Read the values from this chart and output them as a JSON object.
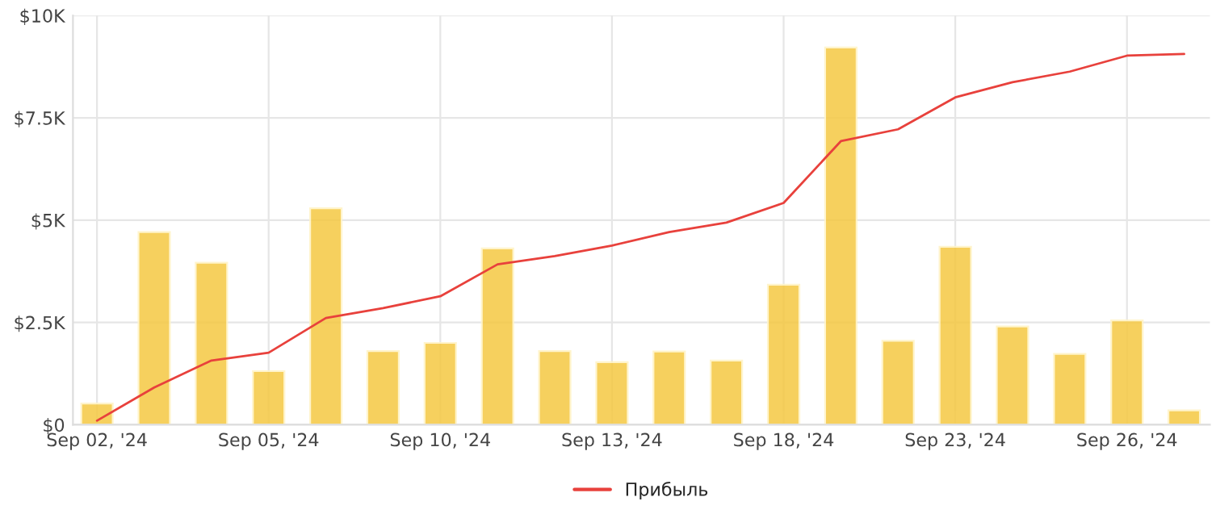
{
  "chart_data": {
    "type": "bar",
    "categories": [
      "Sep 02, '24",
      null,
      null,
      "Sep 05, '24",
      null,
      null,
      "Sep 10, '24",
      null,
      null,
      "Sep 13, '24",
      null,
      null,
      "Sep 18, '24",
      null,
      null,
      "Sep 23, '24",
      null,
      null,
      "Sep 26, '24",
      null
    ],
    "series": [
      {
        "color": "#f5c842",
        "values": [
          520,
          4710,
          3960,
          1310,
          5290,
          1800,
          2000,
          4310,
          1800,
          1530,
          1790,
          1570,
          3420,
          9220,
          2050,
          4350,
          2400,
          1730,
          2550,
          350
        ]
      },
      {
        "type": "line",
        "name": "Прибыль",
        "color": "#e8413c",
        "values": [
          100,
          910,
          1570,
          1760,
          2610,
          2850,
          3140,
          3920,
          4120,
          4380,
          4710,
          4940,
          5420,
          6930,
          7220,
          8000,
          8370,
          8630,
          9020,
          9060
        ]
      }
    ],
    "ylim": [
      0,
      10000
    ],
    "yticks": [
      {
        "value": 0,
        "label": "$0"
      },
      {
        "value": 2500,
        "label": "$2.5K"
      },
      {
        "value": 5000,
        "label": "$5K"
      },
      {
        "value": 7500,
        "label": "$7.5K"
      },
      {
        "value": 10000,
        "label": "$10K"
      }
    ],
    "grid": true,
    "legend": "bottom"
  }
}
